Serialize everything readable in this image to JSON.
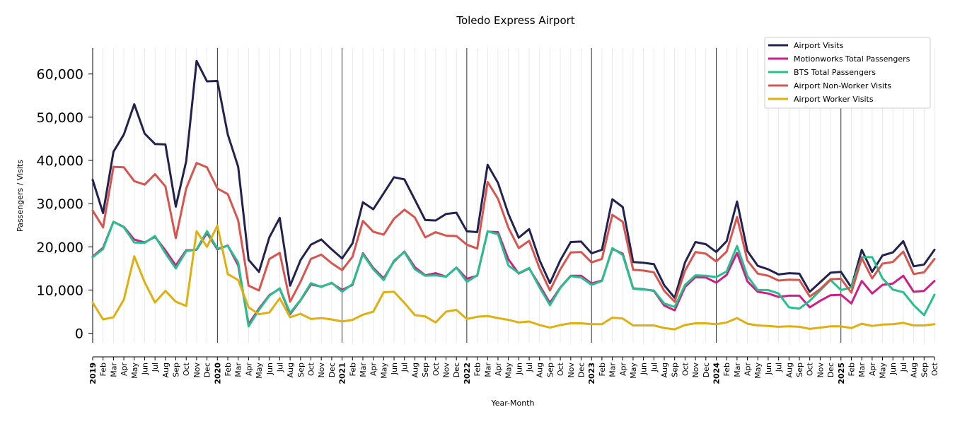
{
  "chart_data": {
    "type": "line",
    "title": "Toledo Express Airport",
    "xlabel": "Year-Month",
    "ylabel": "Passengers / Visits",
    "ylim": [
      -2200,
      66000
    ],
    "yticks": [
      0,
      10000,
      20000,
      30000,
      40000,
      50000,
      60000
    ],
    "ytick_labels": [
      "0",
      "10,000",
      "20,000",
      "30,000",
      "40,000",
      "50,000",
      "60,000"
    ],
    "grid": "vertical",
    "legend_position": "top-right",
    "x": [
      "2019",
      "Feb",
      "Mar",
      "Apr",
      "May",
      "Jun",
      "Jul",
      "Aug",
      "Sep",
      "Oct",
      "Nov",
      "Dec",
      "2020",
      "Feb",
      "Mar",
      "Apr",
      "May",
      "Jun",
      "Jul",
      "Aug",
      "Sep",
      "Oct",
      "Nov",
      "Dec",
      "2021",
      "Feb",
      "Mar",
      "Apr",
      "May",
      "Jun",
      "Jul",
      "Aug",
      "Sep",
      "Oct",
      "Nov",
      "Dec",
      "2022",
      "Feb",
      "Mar",
      "Apr",
      "May",
      "Jun",
      "Jul",
      "Aug",
      "Sep",
      "Oct",
      "Nov",
      "Dec",
      "2023",
      "Feb",
      "Mar",
      "Apr",
      "May",
      "Jun",
      "Jul",
      "Aug",
      "Sep",
      "Oct",
      "Nov",
      "Dec",
      "2024",
      "Feb",
      "Mar",
      "Apr",
      "May",
      "Jun",
      "Jul",
      "Aug",
      "Sep",
      "Oct",
      "Nov",
      "Dec",
      "2025",
      "Feb",
      "Mar",
      "Apr",
      "May",
      "Jun",
      "Jul",
      "Aug",
      "Sep",
      "Oct"
    ],
    "series": [
      {
        "name": "Airport Visits",
        "color": "#222250",
        "values": [
          35500,
          27800,
          42000,
          46000,
          53000,
          46200,
          43800,
          43700,
          29300,
          39800,
          63000,
          58300,
          58400,
          46000,
          38500,
          17000,
          14200,
          22200,
          26700,
          11000,
          16900,
          20500,
          21700,
          19400,
          17300,
          20800,
          30300,
          28700,
          32400,
          36100,
          35600,
          30900,
          26200,
          26100,
          27600,
          27900,
          23600,
          23400,
          39000,
          34800,
          27600,
          22100,
          24100,
          16900,
          11600,
          16900,
          21100,
          21200,
          18500,
          19300,
          31000,
          29200,
          16500,
          16300,
          16000,
          11100,
          8200,
          16400,
          21100,
          20600,
          18800,
          21300,
          30500,
          19000,
          15600,
          14800,
          13600,
          13900,
          13800,
          9600,
          11800,
          14000,
          14200,
          10600,
          19300,
          14200,
          18000,
          18700,
          21300,
          15500,
          15900,
          19300
        ]
      },
      {
        "name": "Motionworks Total Passengers",
        "color": "#cc1f88",
        "values": [
          17700,
          19800,
          25800,
          24600,
          21700,
          21000,
          22300,
          19200,
          15700,
          19200,
          19300,
          23200,
          19400,
          20300,
          15700,
          2100,
          5700,
          8800,
          10300,
          4400,
          7600,
          11300,
          10800,
          11600,
          10000,
          11200,
          18500,
          15100,
          12700,
          16600,
          18900,
          15300,
          13400,
          13900,
          13100,
          15200,
          12600,
          13300,
          23500,
          23400,
          17100,
          13800,
          15000,
          11100,
          7000,
          10600,
          13300,
          13300,
          11500,
          12200,
          19500,
          18400,
          10400,
          10200,
          9800,
          6400,
          5300,
          10700,
          13000,
          12900,
          11700,
          13500,
          18600,
          12000,
          9600,
          9200,
          8400,
          8700,
          8700,
          6000,
          7500,
          8800,
          8900,
          6900,
          12100,
          9200,
          11200,
          11500,
          13300,
          9600,
          9800,
          12100
        ]
      },
      {
        "name": "BTS Total Passengers",
        "color": "#25c08c",
        "values": [
          17600,
          19500,
          25800,
          24500,
          21000,
          20900,
          22500,
          18500,
          15000,
          19000,
          19400,
          23600,
          19600,
          20200,
          16400,
          1600,
          5400,
          8700,
          10400,
          4700,
          7700,
          11600,
          10700,
          11700,
          9600,
          11400,
          18300,
          14800,
          12300,
          16800,
          18800,
          14800,
          13300,
          13400,
          13100,
          15200,
          11900,
          13400,
          23600,
          22900,
          15700,
          13900,
          15100,
          10600,
          6500,
          10500,
          13200,
          12900,
          11200,
          12100,
          19700,
          18100,
          10300,
          10100,
          9900,
          6900,
          6100,
          11200,
          13400,
          13300,
          13000,
          14300,
          20200,
          13200,
          10000,
          10000,
          9200,
          6000,
          5700,
          7500,
          9900,
          12300,
          10000,
          10600,
          17600,
          17600,
          12700,
          10100,
          9500,
          6500,
          4200,
          8900
        ]
      },
      {
        "name": "Airport Non-Worker Visits",
        "color": "#d9534f",
        "values": [
          28400,
          24500,
          38500,
          38400,
          35200,
          34400,
          36800,
          34000,
          22000,
          33500,
          39400,
          38400,
          33500,
          32200,
          26100,
          11000,
          9900,
          17200,
          18600,
          7300,
          11900,
          17200,
          18200,
          16200,
          14600,
          17700,
          26000,
          23500,
          22800,
          26500,
          28600,
          26800,
          22200,
          23400,
          22600,
          22500,
          20500,
          19600,
          35000,
          31100,
          24400,
          19700,
          21400,
          15000,
          9900,
          14800,
          18700,
          18800,
          16400,
          17200,
          27400,
          25800,
          14700,
          14500,
          14100,
          9800,
          7300,
          14500,
          18800,
          18400,
          16600,
          18900,
          26900,
          16800,
          13800,
          13300,
          12200,
          12400,
          12300,
          8500,
          10200,
          12500,
          12600,
          9400,
          17400,
          12700,
          16100,
          16500,
          18900,
          13700,
          14100,
          17200
        ]
      },
      {
        "name": "Airport Worker Visits",
        "color": "#e0b012",
        "values": [
          7100,
          3200,
          3700,
          7800,
          17800,
          11800,
          7100,
          9800,
          7300,
          6300,
          23600,
          20000,
          24900,
          13700,
          12300,
          6000,
          4400,
          4800,
          8100,
          3700,
          4500,
          3300,
          3500,
          3200,
          2700,
          3100,
          4300,
          5000,
          9500,
          9600,
          7000,
          4200,
          3900,
          2500,
          5000,
          5400,
          3300,
          3800,
          4000,
          3500,
          3100,
          2500,
          2700,
          1900,
          1300,
          1900,
          2300,
          2300,
          2100,
          2100,
          3600,
          3400,
          1800,
          1800,
          1800,
          1200,
          900,
          1900,
          2300,
          2300,
          2100,
          2500,
          3500,
          2200,
          1800,
          1700,
          1500,
          1600,
          1500,
          1000,
          1300,
          1600,
          1600,
          1200,
          2200,
          1700,
          2000,
          2100,
          2400,
          1800,
          1800,
          2100
        ]
      }
    ]
  }
}
